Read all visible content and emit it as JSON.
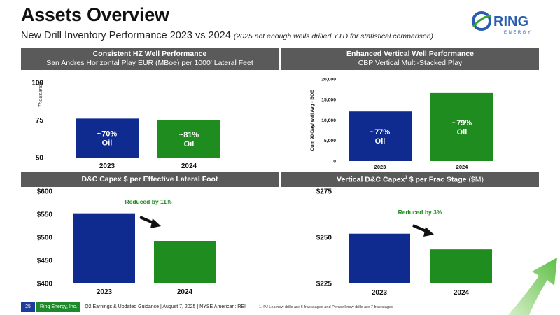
{
  "header": {
    "title": "Assets Overview",
    "subtitle": "New Drill Inventory Performance 2023 vs 2024",
    "subtitle_note": "(2025 not enough wells drilled YTD for statistical comparison)"
  },
  "logo": {
    "text": "RING",
    "subtext": "ENERGY",
    "ring_color": "#2a5db0",
    "accent_color": "#3aa23a"
  },
  "panels": {
    "top_left": {
      "title": "Consistent HZ Well Performance",
      "subtitle": "San Andres Horizontal Play EUR (MBoe) per 1000' Lateral Feet"
    },
    "top_right": {
      "title": "Enhanced Vertical Well Performance",
      "subtitle": "CBP Vertical Multi-Stacked Play"
    },
    "bottom_left": {
      "title": "D&C Capex $ per Effective Lateral Foot"
    },
    "bottom_right": {
      "title": "Vertical D&C Capex",
      "superscript": "1",
      "title_suffix": " $ per Frac Stage",
      "unit": "($M)"
    }
  },
  "footer": {
    "page_number": "25",
    "company": "Ring Energy, Inc.",
    "event": "Q2 Earnings & Updated Guidance | August 7, 2025 | NYSE American: REI",
    "footnote": "1.    PJ Lea new drills are 6 frac stages and Penwell new drills are 7 frac stages"
  },
  "colors": {
    "blue": "#0f2b8f",
    "green": "#1e8c1e",
    "header_gray": "#5a5a5a",
    "annotation_green": "#1e8c1e"
  },
  "chart_data": [
    {
      "id": "hz-eur",
      "type": "bar",
      "categories": [
        "2023",
        "2024"
      ],
      "values": [
        76,
        75
      ],
      "bar_labels": [
        [
          "~70%",
          "Oil"
        ],
        [
          "~81%",
          "Oil"
        ]
      ],
      "colors": [
        "#0f2b8f",
        "#1e8c1e"
      ],
      "ylabel": "Thousands",
      "ylim": [
        50,
        100
      ],
      "yticks": [
        50,
        75,
        100
      ],
      "ytick_labels": [
        "50",
        "75",
        "100"
      ],
      "grid": false,
      "annotation": ""
    },
    {
      "id": "vertical-90day",
      "type": "bar",
      "categories": [
        "2023",
        "2024"
      ],
      "values": [
        12100,
        16600
      ],
      "bar_labels": [
        [
          "~77%",
          "Oil"
        ],
        [
          "~79%",
          "Oil"
        ]
      ],
      "colors": [
        "#0f2b8f",
        "#1e8c1e"
      ],
      "ylabel": "Cum 90-Day/ well Avg - BOE",
      "ylim": [
        0,
        20000
      ],
      "yticks": [
        0,
        5000,
        10000,
        15000,
        20000
      ],
      "ytick_labels": [
        "0",
        "5,000",
        "10,000",
        "15,000",
        "20,000"
      ],
      "grid": false,
      "annotation": ""
    },
    {
      "id": "dc-capex-lateral",
      "type": "bar",
      "categories": [
        "2023",
        "2024"
      ],
      "values": [
        552,
        492
      ],
      "bar_labels": [],
      "colors": [
        "#0f2b8f",
        "#1e8c1e"
      ],
      "ylabel": "",
      "ylim": [
        400,
        600
      ],
      "yticks": [
        400,
        450,
        500,
        550,
        600
      ],
      "ytick_labels": [
        "$400",
        "$450",
        "$500",
        "$550",
        "$600"
      ],
      "grid": false,
      "annotation": "Reduced by 11%"
    },
    {
      "id": "vertical-capex-stage",
      "type": "bar",
      "categories": [
        "2023",
        "2024"
      ],
      "values": [
        252,
        243.5
      ],
      "bar_labels": [],
      "colors": [
        "#0f2b8f",
        "#1e8c1e"
      ],
      "ylabel": "",
      "ylim": [
        225,
        275
      ],
      "yticks": [
        225,
        250,
        275
      ],
      "ytick_labels": [
        "$225",
        "$250",
        "$275"
      ],
      "grid": false,
      "annotation": "Reduced by 3%"
    }
  ]
}
